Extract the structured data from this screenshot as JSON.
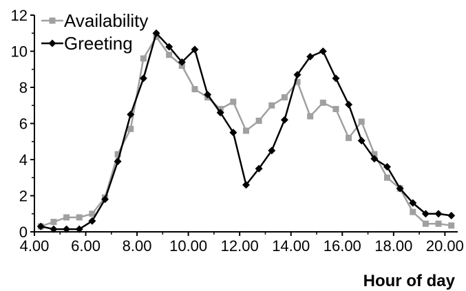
{
  "chart_data": {
    "type": "line",
    "xlabel": "Hour of day",
    "ylabel": "",
    "xlim": [
      4,
      20.5
    ],
    "ylim": [
      0,
      12
    ],
    "xticks": [
      4,
      6,
      8,
      10,
      12,
      14,
      16,
      18,
      20
    ],
    "xtick_labels": [
      "4.00",
      "6.00",
      "8.00",
      "10.00",
      "12.00",
      "14.00",
      "16.00",
      "18.00",
      "20.00"
    ],
    "yticks": [
      0,
      2,
      4,
      6,
      8,
      10,
      12
    ],
    "ytick_labels": [
      "0",
      "2",
      "4",
      "6",
      "8",
      "10",
      "12"
    ],
    "grid": false,
    "legend_position": "top-left",
    "series": [
      {
        "name": "Availability",
        "color": "#a0a0a0",
        "marker": "square",
        "points": [
          [
            4.25,
            0.3
          ],
          [
            4.75,
            0.55
          ],
          [
            5.25,
            0.8
          ],
          [
            5.75,
            0.8
          ],
          [
            6.25,
            1.0
          ],
          [
            6.75,
            1.9
          ],
          [
            7.25,
            4.3
          ],
          [
            7.75,
            5.7
          ],
          [
            8.25,
            9.6
          ],
          [
            8.75,
            10.8
          ],
          [
            9.25,
            9.8
          ],
          [
            9.75,
            9.2
          ],
          [
            10.25,
            7.9
          ],
          [
            10.75,
            7.45
          ],
          [
            11.25,
            6.8
          ],
          [
            11.75,
            7.2
          ],
          [
            12.25,
            5.6
          ],
          [
            12.75,
            6.15
          ],
          [
            13.25,
            7.0
          ],
          [
            13.75,
            7.45
          ],
          [
            14.25,
            8.3
          ],
          [
            14.75,
            6.4
          ],
          [
            15.25,
            7.15
          ],
          [
            15.75,
            6.8
          ],
          [
            16.25,
            5.2
          ],
          [
            16.75,
            6.1
          ],
          [
            17.25,
            4.3
          ],
          [
            17.75,
            3.0
          ],
          [
            18.25,
            2.4
          ],
          [
            18.75,
            1.1
          ],
          [
            19.25,
            0.45
          ],
          [
            19.75,
            0.45
          ],
          [
            20.25,
            0.35
          ]
        ]
      },
      {
        "name": "Greeting",
        "color": "#000000",
        "marker": "diamond",
        "points": [
          [
            4.25,
            0.3
          ],
          [
            4.75,
            0.15
          ],
          [
            5.25,
            0.15
          ],
          [
            5.75,
            0.15
          ],
          [
            6.25,
            0.6
          ],
          [
            6.75,
            1.8
          ],
          [
            7.25,
            3.9
          ],
          [
            7.75,
            6.5
          ],
          [
            8.25,
            8.5
          ],
          [
            8.75,
            11.0
          ],
          [
            9.25,
            10.25
          ],
          [
            9.75,
            9.4
          ],
          [
            10.25,
            10.1
          ],
          [
            10.75,
            7.6
          ],
          [
            11.25,
            6.6
          ],
          [
            11.75,
            5.5
          ],
          [
            12.25,
            2.6
          ],
          [
            12.75,
            3.5
          ],
          [
            13.25,
            4.5
          ],
          [
            13.75,
            6.2
          ],
          [
            14.25,
            8.7
          ],
          [
            14.75,
            9.7
          ],
          [
            15.25,
            10.0
          ],
          [
            15.75,
            8.5
          ],
          [
            16.25,
            7.05
          ],
          [
            16.75,
            5.05
          ],
          [
            17.25,
            4.05
          ],
          [
            17.75,
            3.6
          ],
          [
            18.25,
            2.4
          ],
          [
            18.75,
            1.6
          ],
          [
            19.25,
            1.0
          ],
          [
            19.75,
            1.0
          ],
          [
            20.25,
            0.9
          ]
        ]
      }
    ]
  }
}
